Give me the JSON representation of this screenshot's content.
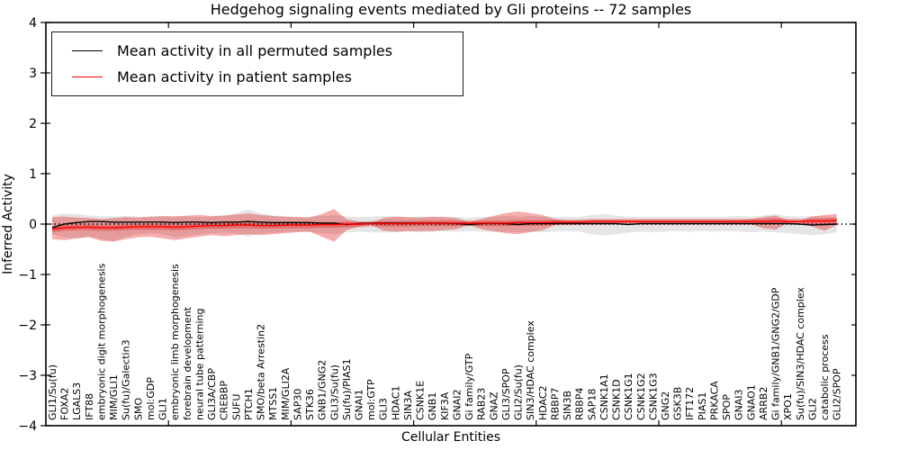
{
  "title": "Hedgehog signaling events mediated by Gli proteins -- 72 samples",
  "legend": {
    "entries": [
      {
        "label": "Mean activity in all permuted samples",
        "color": "#000000"
      },
      {
        "label": "Mean activity in patient samples",
        "color": "#ff0000"
      }
    ]
  },
  "chart_data": {
    "type": "line",
    "title": "Hedgehog signaling events mediated by Gli proteins -- 72 samples",
    "xlabel": "Cellular Entities",
    "ylabel": "Inferred Activity",
    "ylim": [
      -4,
      4
    ],
    "yticks": [
      4,
      3,
      2,
      1,
      0,
      -1,
      -2,
      -3,
      -4
    ],
    "ytick_labels": [
      "4",
      "3",
      "2",
      "1",
      "0",
      "−1",
      "−2",
      "−3",
      "−4"
    ],
    "grid": false,
    "legend_position": "upper left",
    "zero_line": {
      "style": "dotted",
      "color": "#000000"
    },
    "band_colors": {
      "permuted": "#888888",
      "patient": "#e00000"
    },
    "categories": [
      "GLI1/Su(fu)",
      "FOXA2",
      "LGALS3",
      "IFT88",
      "embryonic digit morphogenesis",
      "MIM/GLI1",
      "Su(fu)/Galectin3",
      "SMO",
      "mol:GDP",
      "GLI1",
      "embryonic limb morphogenesis",
      "forebrain development",
      "neural tube patterning",
      "GLI3A/CBP",
      "CREBBP",
      "SUFU",
      "PTCH1",
      "SMO/beta Arrestin2",
      "MTSS1",
      "MIM/GLI2A",
      "SAP30",
      "STK36",
      "GNB1/GNG2",
      "GLI3/Su(fu)",
      "Su(fu)/PIAS1",
      "GNAI1",
      "mol:GTP",
      "GLI3",
      "HDAC1",
      "SIN3A",
      "CSNK1E",
      "GNB1",
      "KIF3A",
      "GNAI2",
      "Gi family/GTP",
      "RAB23",
      "GNAZ",
      "GLI3/SPOP",
      "GLI2/Su(fu)",
      "SIN3/HDAC complex",
      "HDAC2",
      "RBBP7",
      "SIN3B",
      "RBBP4",
      "SAP18",
      "CSNK1A1",
      "CSNK1D",
      "CSNK1G1",
      "CSNK1G2",
      "CSNK1G3",
      "GNG2",
      "GSK3B",
      "IFT172",
      "PIAS1",
      "PRKACA",
      "SPOP",
      "GNAI3",
      "GNAO1",
      "ARRB2",
      "Gi family/GNB1/GNG2/GDP",
      "XPO1",
      "Su(fu)/SIN3/HDAC complex",
      "GLI2",
      "catabolic process",
      "GLI2/SPOP"
    ],
    "series": [
      {
        "name": "Mean activity in all permuted samples",
        "color": "#000000",
        "values": [
          -0.07,
          0.0,
          0.03,
          0.05,
          0.05,
          0.04,
          0.04,
          0.04,
          0.04,
          0.04,
          0.03,
          0.04,
          0.04,
          0.03,
          0.04,
          0.04,
          0.05,
          0.04,
          0.03,
          0.03,
          0.03,
          0.03,
          0.02,
          0.02,
          -0.01,
          0.01,
          0.02,
          0.02,
          0.02,
          0.02,
          0.02,
          0.02,
          0.02,
          0.01,
          -0.01,
          0.01,
          0.02,
          0.01,
          -0.01,
          0.01,
          0.01,
          0.01,
          0.01,
          0.01,
          0.01,
          0.01,
          0.01,
          -0.01,
          0.01,
          0.01,
          0.01,
          0.01,
          0.01,
          0.01,
          0.01,
          0.01,
          0.01,
          0.01,
          0.01,
          0.01,
          0.01,
          0.0,
          -0.02,
          -0.01,
          0.0
        ]
      },
      {
        "name": "Mean activity in patient samples",
        "color": "#ff0000",
        "values": [
          -0.1,
          -0.07,
          -0.06,
          -0.06,
          -0.07,
          -0.07,
          -0.06,
          -0.05,
          -0.05,
          -0.05,
          -0.06,
          -0.05,
          -0.04,
          -0.03,
          -0.03,
          -0.02,
          -0.02,
          -0.03,
          -0.03,
          -0.02,
          -0.02,
          -0.02,
          -0.01,
          -0.01,
          0.0,
          0.0,
          0.01,
          0.01,
          0.01,
          0.01,
          0.02,
          0.02,
          0.02,
          0.02,
          0.02,
          0.02,
          0.02,
          0.02,
          0.03,
          0.03,
          0.03,
          0.04,
          0.04,
          0.04,
          0.05,
          0.05,
          0.05,
          0.05,
          0.05,
          0.05,
          0.05,
          0.05,
          0.05,
          0.05,
          0.05,
          0.05,
          0.05,
          0.05,
          0.05,
          0.06,
          0.05,
          0.05,
          0.06,
          0.06,
          0.07
        ]
      }
    ],
    "bands": [
      {
        "name": "permuted-range",
        "color": "#888888",
        "opacity": 0.22,
        "upper": [
          0.18,
          0.21,
          0.2,
          0.17,
          0.16,
          0.15,
          0.16,
          0.15,
          0.14,
          0.15,
          0.16,
          0.15,
          0.14,
          0.15,
          0.17,
          0.22,
          0.29,
          0.22,
          0.17,
          0.15,
          0.14,
          0.15,
          0.16,
          0.18,
          0.15,
          0.14,
          0.15,
          0.16,
          0.15,
          0.14,
          0.15,
          0.14,
          0.15,
          0.14,
          0.13,
          0.14,
          0.15,
          0.16,
          0.15,
          0.16,
          0.15,
          0.14,
          0.15,
          0.14,
          0.18,
          0.2,
          0.17,
          0.15,
          0.14,
          0.15,
          0.14,
          0.15,
          0.14,
          0.15,
          0.14,
          0.15,
          0.16,
          0.15,
          0.17,
          0.2,
          0.16,
          0.15,
          0.16,
          0.15,
          0.14
        ],
        "lower": [
          -0.2,
          -0.26,
          -0.29,
          -0.24,
          -0.3,
          -0.33,
          -0.26,
          -0.2,
          -0.18,
          -0.2,
          -0.26,
          -0.24,
          -0.2,
          -0.18,
          -0.17,
          -0.18,
          -0.25,
          -0.18,
          -0.17,
          -0.16,
          -0.15,
          -0.16,
          -0.18,
          -0.2,
          -0.16,
          -0.15,
          -0.16,
          -0.17,
          -0.16,
          -0.15,
          -0.16,
          -0.15,
          -0.14,
          -0.15,
          -0.14,
          -0.15,
          -0.16,
          -0.15,
          -0.16,
          -0.15,
          -0.16,
          -0.15,
          -0.14,
          -0.15,
          -0.2,
          -0.23,
          -0.2,
          -0.17,
          -0.15,
          -0.16,
          -0.15,
          -0.14,
          -0.15,
          -0.14,
          -0.15,
          -0.14,
          -0.15,
          -0.16,
          -0.15,
          -0.16,
          -0.18,
          -0.2,
          -0.22,
          -0.2,
          -0.16
        ]
      },
      {
        "name": "patient-range-outer",
        "color": "#e00000",
        "opacity": 0.32,
        "upper": [
          0.14,
          0.15,
          0.13,
          0.12,
          0.1,
          0.12,
          0.14,
          0.13,
          0.15,
          0.16,
          0.15,
          0.17,
          0.18,
          0.16,
          0.17,
          0.19,
          0.21,
          0.18,
          0.16,
          0.15,
          0.14,
          0.13,
          0.2,
          0.3,
          0.1,
          0.05,
          0.02,
          0.12,
          0.15,
          0.14,
          0.13,
          0.15,
          0.14,
          0.12,
          0.04,
          0.1,
          0.16,
          0.22,
          0.25,
          0.22,
          0.18,
          0.1,
          0.07,
          0.07,
          0.08,
          0.08,
          0.08,
          0.08,
          0.08,
          0.08,
          0.08,
          0.08,
          0.08,
          0.08,
          0.08,
          0.08,
          0.08,
          0.1,
          0.14,
          0.17,
          0.08,
          0.07,
          0.15,
          0.18,
          0.2
        ],
        "lower": [
          -0.3,
          -0.32,
          -0.28,
          -0.26,
          -0.33,
          -0.35,
          -0.3,
          -0.26,
          -0.25,
          -0.28,
          -0.32,
          -0.28,
          -0.25,
          -0.22,
          -0.24,
          -0.22,
          -0.2,
          -0.22,
          -0.2,
          -0.18,
          -0.16,
          -0.15,
          -0.25,
          -0.35,
          -0.12,
          -0.05,
          -0.01,
          -0.13,
          -0.15,
          -0.14,
          -0.14,
          -0.14,
          -0.12,
          -0.1,
          -0.02,
          -0.1,
          -0.14,
          -0.18,
          -0.2,
          -0.16,
          -0.12,
          -0.02,
          0.02,
          0.02,
          0.02,
          0.02,
          0.02,
          0.02,
          0.02,
          0.02,
          0.02,
          0.02,
          0.02,
          0.02,
          0.02,
          0.02,
          0.02,
          0.0,
          -0.08,
          -0.11,
          0.02,
          0.03,
          -0.05,
          -0.13,
          -0.02
        ]
      },
      {
        "name": "patient-range-inner",
        "color": "#e00000",
        "opacity": 0.3,
        "upper": [
          -0.05,
          -0.02,
          -0.01,
          -0.01,
          -0.02,
          -0.02,
          -0.01,
          0.0,
          0.0,
          0.0,
          -0.01,
          0.0,
          0.01,
          0.02,
          0.02,
          0.03,
          0.03,
          0.02,
          0.02,
          0.03,
          0.03,
          0.03,
          0.04,
          0.04,
          0.05,
          0.05,
          0.06,
          0.06,
          0.06,
          0.06,
          0.07,
          0.07,
          0.07,
          0.07,
          0.07,
          0.07,
          0.07,
          0.07,
          0.08,
          0.08,
          0.08,
          0.09,
          0.09,
          0.09,
          0.1,
          0.1,
          0.1,
          0.1,
          0.1,
          0.1,
          0.1,
          0.1,
          0.1,
          0.1,
          0.1,
          0.1,
          0.1,
          0.1,
          0.1,
          0.11,
          0.1,
          0.1,
          0.11,
          0.11,
          0.12
        ],
        "lower": [
          -0.16,
          -0.13,
          -0.12,
          -0.12,
          -0.13,
          -0.13,
          -0.12,
          -0.11,
          -0.11,
          -0.11,
          -0.12,
          -0.11,
          -0.1,
          -0.09,
          -0.09,
          -0.08,
          -0.08,
          -0.09,
          -0.09,
          -0.08,
          -0.08,
          -0.08,
          -0.07,
          -0.07,
          -0.06,
          -0.06,
          -0.05,
          -0.05,
          -0.05,
          -0.05,
          -0.04,
          -0.04,
          -0.04,
          -0.04,
          -0.04,
          -0.04,
          -0.04,
          -0.04,
          -0.03,
          -0.03,
          -0.03,
          -0.02,
          -0.02,
          -0.02,
          -0.01,
          -0.01,
          -0.01,
          -0.01,
          -0.01,
          -0.01,
          -0.01,
          -0.01,
          -0.01,
          -0.01,
          -0.01,
          -0.01,
          -0.01,
          -0.01,
          -0.01,
          0.0,
          -0.01,
          -0.01,
          0.0,
          0.0,
          0.01
        ]
      }
    ]
  }
}
